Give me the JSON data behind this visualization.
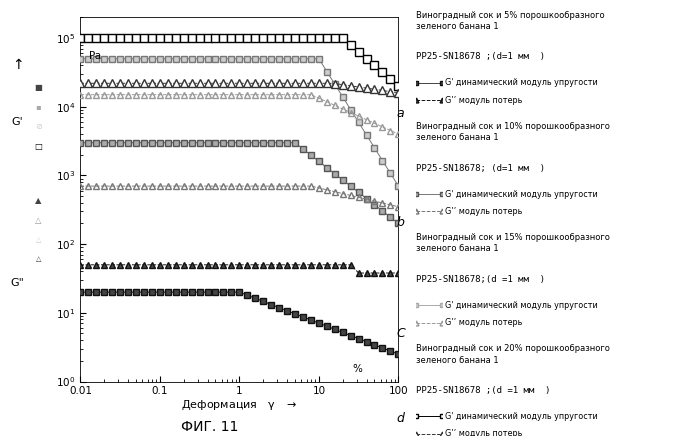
{
  "x": [
    0.01,
    0.0126,
    0.0158,
    0.02,
    0.0251,
    0.0316,
    0.0398,
    0.05,
    0.063,
    0.0794,
    0.1,
    0.126,
    0.158,
    0.2,
    0.251,
    0.316,
    0.398,
    0.5,
    0.63,
    0.794,
    1.0,
    1.26,
    1.58,
    2.0,
    2.51,
    3.16,
    3.98,
    5.0,
    6.3,
    7.94,
    10.0,
    12.6,
    15.8,
    20.0,
    25.1,
    31.6,
    39.8,
    50.0,
    63.0,
    79.4,
    100.0
  ],
  "xlim": [
    0.01,
    100
  ],
  "ylim": [
    1.0,
    200000
  ],
  "xlabel": "Деформация   γ",
  "title_bottom": "ФИГ. 11",
  "Pa_label": "Pa",
  "percent_label": "%",
  "legend_a_title": "Виноградный сок и 5% порошкообразного\nзеленого банана 1",
  "legend_a_sub": "PP25-SN18678 ;(d=1 мм  )",
  "legend_b_title": "Виноградный сок и 10% порошкообразного\nзеленого банана 1",
  "legend_b_sub": "PP25-SN18678; (d=1 мм  )",
  "legend_c_title": "Виноградный сок и 15% порошкообразного\nзеленого банана 1",
  "legend_c_sub": "PP25-SN18678;(d =1 мм  )",
  "legend_d_title": "Виноградный сок и 20% порошкообразного\nзеленого банана 1",
  "legend_d_sub": "PP25-SN18678 ;(d =1 мм  )"
}
